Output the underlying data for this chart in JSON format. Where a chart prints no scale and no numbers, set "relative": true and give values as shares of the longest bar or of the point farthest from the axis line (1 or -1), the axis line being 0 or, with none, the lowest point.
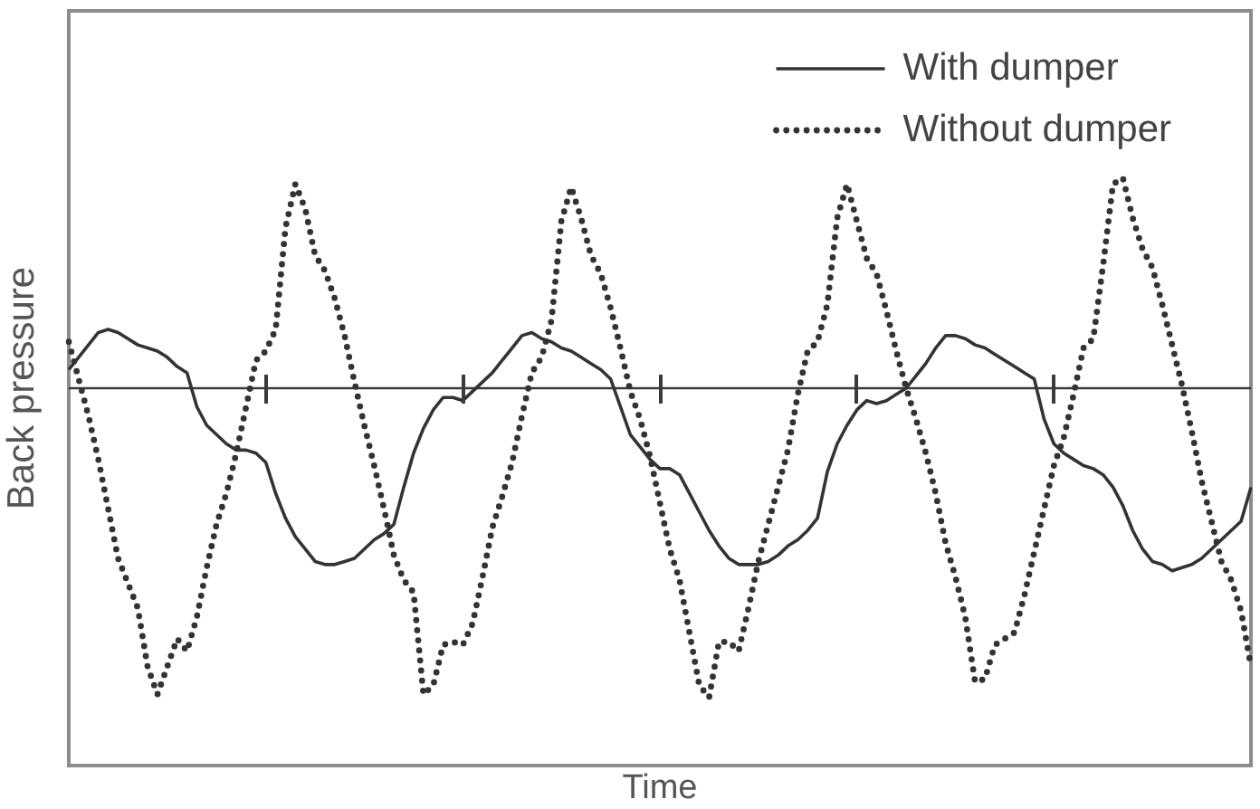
{
  "chart_data": {
    "type": "line",
    "xlabel": "Time",
    "ylabel": "Back pressure",
    "relative": true,
    "legend": "top right",
    "marker": "none",
    "categories": [
      null,
      null,
      null,
      null,
      null,
      null,
      null,
      null,
      null,
      null,
      null,
      null,
      null,
      null,
      null,
      null,
      null,
      null,
      null,
      null,
      null,
      null,
      null,
      null,
      null,
      null,
      null,
      null,
      null,
      null,
      null,
      null,
      null,
      null,
      null,
      null,
      null,
      null,
      null,
      null,
      null,
      null,
      null,
      null,
      null,
      null,
      null,
      null,
      null,
      null,
      null,
      null,
      null,
      null,
      null,
      null,
      null,
      null,
      null,
      null,
      null,
      null,
      null,
      null,
      null,
      null,
      null,
      null,
      null,
      null,
      null,
      null,
      null,
      null,
      null,
      null,
      null,
      null,
      null,
      null,
      null,
      null,
      null,
      null,
      null,
      null,
      null,
      null,
      null,
      null,
      null,
      null,
      null,
      null,
      null,
      null,
      null,
      null,
      null,
      null,
      null,
      null,
      null,
      null,
      null,
      null,
      null,
      null,
      null,
      null,
      null,
      null,
      null,
      null,
      null,
      null,
      null,
      null,
      null,
      null,
      null
    ],
    "series": [
      {
        "name": "With dumper",
        "color": "#333333",
        "line_style": "solid",
        "values": [
          0.06,
          0.1,
          0.14,
          0.18,
          0.19,
          0.18,
          0.16,
          0.14,
          0.13,
          0.12,
          0.1,
          0.07,
          0.05,
          -0.06,
          -0.12,
          -0.15,
          -0.18,
          -0.2,
          -0.2,
          -0.21,
          -0.24,
          -0.34,
          -0.42,
          -0.48,
          -0.52,
          -0.56,
          -0.57,
          -0.57,
          -0.56,
          -0.55,
          -0.52,
          -0.49,
          -0.47,
          -0.44,
          -0.32,
          -0.21,
          -0.13,
          -0.07,
          -0.03,
          -0.03,
          -0.04,
          -0.01,
          0.02,
          0.05,
          0.09,
          0.13,
          0.17,
          0.18,
          0.16,
          0.15,
          0.13,
          0.12,
          0.1,
          0.08,
          0.06,
          0.03,
          -0.06,
          -0.15,
          -0.19,
          -0.23,
          -0.26,
          -0.26,
          -0.28,
          -0.34,
          -0.4,
          -0.46,
          -0.51,
          -0.55,
          -0.57,
          -0.57,
          -0.57,
          -0.56,
          -0.54,
          -0.51,
          -0.49,
          -0.46,
          -0.42,
          -0.27,
          -0.18,
          -0.12,
          -0.07,
          -0.04,
          -0.05,
          -0.04,
          -0.02,
          0.0,
          0.04,
          0.08,
          0.13,
          0.17,
          0.17,
          0.16,
          0.14,
          0.13,
          0.11,
          0.09,
          0.07,
          0.05,
          0.03,
          -0.1,
          -0.18,
          -0.21,
          -0.23,
          -0.25,
          -0.26,
          -0.28,
          -0.32,
          -0.38,
          -0.46,
          -0.52,
          -0.56,
          -0.57,
          -0.59,
          -0.58,
          -0.57,
          -0.55,
          -0.52,
          -0.49,
          -0.46,
          -0.43,
          -0.32
        ]
      },
      {
        "name": "Without dumper",
        "color": "#333333",
        "line_style": "dotted",
        "values": [
          0.15,
          0.03,
          -0.09,
          -0.23,
          -0.39,
          -0.55,
          -0.63,
          -0.71,
          -0.9,
          -0.99,
          -0.9,
          -0.81,
          -0.85,
          -0.74,
          -0.58,
          -0.44,
          -0.34,
          -0.21,
          -0.06,
          0.09,
          0.12,
          0.19,
          0.52,
          0.66,
          0.58,
          0.43,
          0.38,
          0.29,
          0.17,
          0.02,
          -0.12,
          -0.25,
          -0.39,
          -0.54,
          -0.62,
          -0.66,
          -0.99,
          -0.96,
          -0.83,
          -0.82,
          -0.83,
          -0.76,
          -0.61,
          -0.45,
          -0.35,
          -0.24,
          -0.09,
          0.05,
          0.1,
          0.22,
          0.54,
          0.65,
          0.55,
          0.43,
          0.37,
          0.26,
          0.13,
          -0.01,
          -0.1,
          -0.22,
          -0.37,
          -0.52,
          -0.62,
          -0.79,
          -0.96,
          -1,
          -0.82,
          -0.82,
          -0.85,
          -0.71,
          -0.56,
          -0.44,
          -0.32,
          -0.2,
          -0.02,
          0.12,
          0.15,
          0.27,
          0.55,
          0.66,
          0.54,
          0.42,
          0.37,
          0.25,
          0.12,
          0.0,
          -0.1,
          -0.21,
          -0.34,
          -0.5,
          -0.61,
          -0.74,
          -0.95,
          -0.94,
          -0.83,
          -0.81,
          -0.79,
          -0.67,
          -0.53,
          -0.39,
          -0.25,
          -0.16,
          -0.02,
          0.13,
          0.16,
          0.4,
          0.66,
          0.68,
          0.55,
          0.45,
          0.39,
          0.27,
          0.14,
          0.01,
          -0.14,
          -0.3,
          -0.43,
          -0.56,
          -0.62,
          -0.72,
          -0.9
        ]
      }
    ]
  }
}
